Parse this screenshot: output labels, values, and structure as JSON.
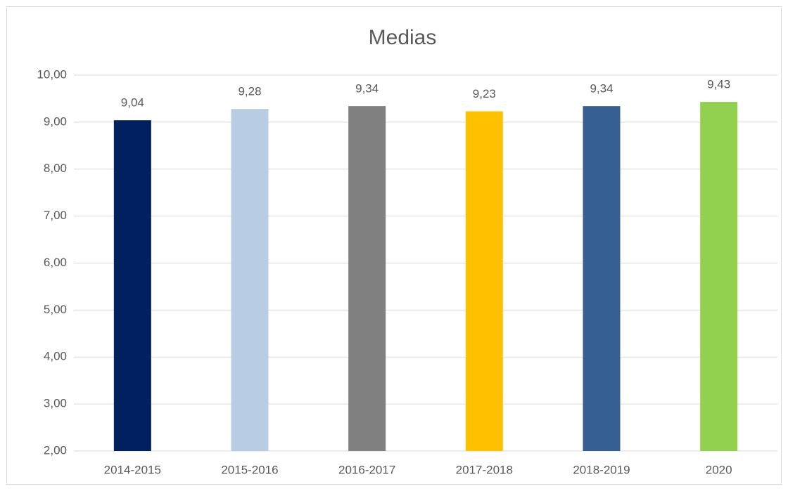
{
  "chart_data": {
    "type": "bar",
    "title": "Medias",
    "categories": [
      "2014-2015",
      "2015-2016",
      "2016-2017",
      "2017-2018",
      "2018-2019",
      "2020"
    ],
    "values": [
      9.04,
      9.28,
      9.34,
      9.23,
      9.34,
      9.43
    ],
    "value_labels": [
      "9,04",
      "9,28",
      "9,34",
      "9,23",
      "9,34",
      "9,43"
    ],
    "colors": [
      "#002060",
      "#b8cce4",
      "#808080",
      "#ffc000",
      "#376092",
      "#92d050"
    ],
    "ylim": [
      2,
      10
    ],
    "yticks": [
      {
        "value": 2,
        "label": "2,00"
      },
      {
        "value": 3,
        "label": "3,00"
      },
      {
        "value": 4,
        "label": "4,00"
      },
      {
        "value": 5,
        "label": "5,00"
      },
      {
        "value": 6,
        "label": "6,00"
      },
      {
        "value": 7,
        "label": "7,00"
      },
      {
        "value": 8,
        "label": "8,00"
      },
      {
        "value": 9,
        "label": "9,00"
      },
      {
        "value": 10,
        "label": "10,00"
      }
    ],
    "grid": true
  }
}
